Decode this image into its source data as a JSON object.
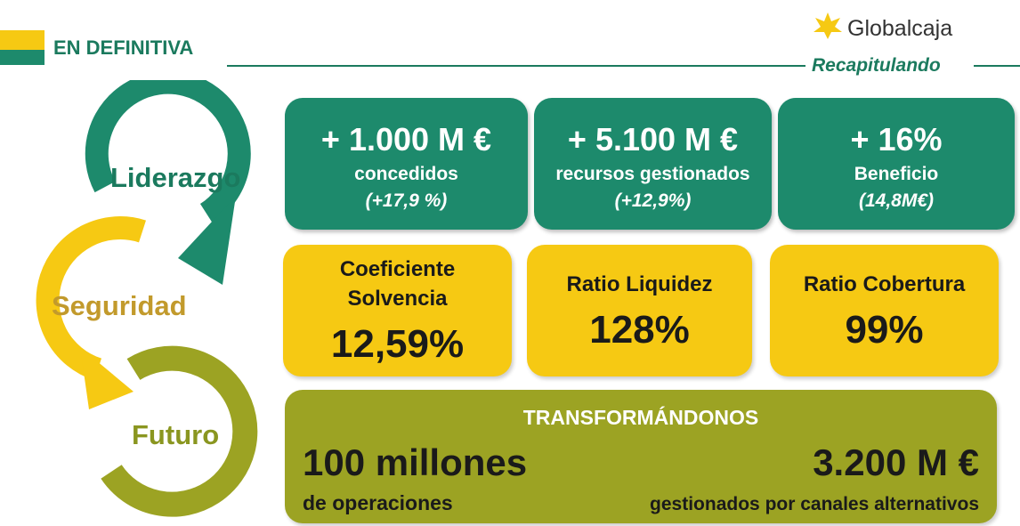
{
  "header": {
    "title": "EN DEFINITIVA",
    "logo": "Globalcaja",
    "subtitle": "Recapitulando"
  },
  "cycle": [
    "Liderazgo",
    "Seguridad",
    "Futuro"
  ],
  "results": [
    {
      "value": "+ 1.000 M €",
      "label": "concedidos",
      "note": "(+17,9 %)"
    },
    {
      "value": "+ 5.100 M €",
      "label": "recursos gestionados",
      "note": "(+12,9%)"
    },
    {
      "value": "+ 16%",
      "label": "Beneficio",
      "note": "(14,8M€)"
    }
  ],
  "ratios": [
    {
      "label": [
        "Coeficiente",
        "Solvencia"
      ],
      "value": "12,59%"
    },
    {
      "label": [
        "Ratio Liquidez"
      ],
      "value": "128%"
    },
    {
      "label": [
        "Ratio Cobertura"
      ],
      "value": "99%"
    }
  ],
  "transform": {
    "title": "TRANSFORMÁNDONOS",
    "left": {
      "value": "100 millones",
      "label": "de operaciones"
    },
    "right": {
      "value": "3.200 M €",
      "label": "gestionados por canales alternativos"
    }
  }
}
